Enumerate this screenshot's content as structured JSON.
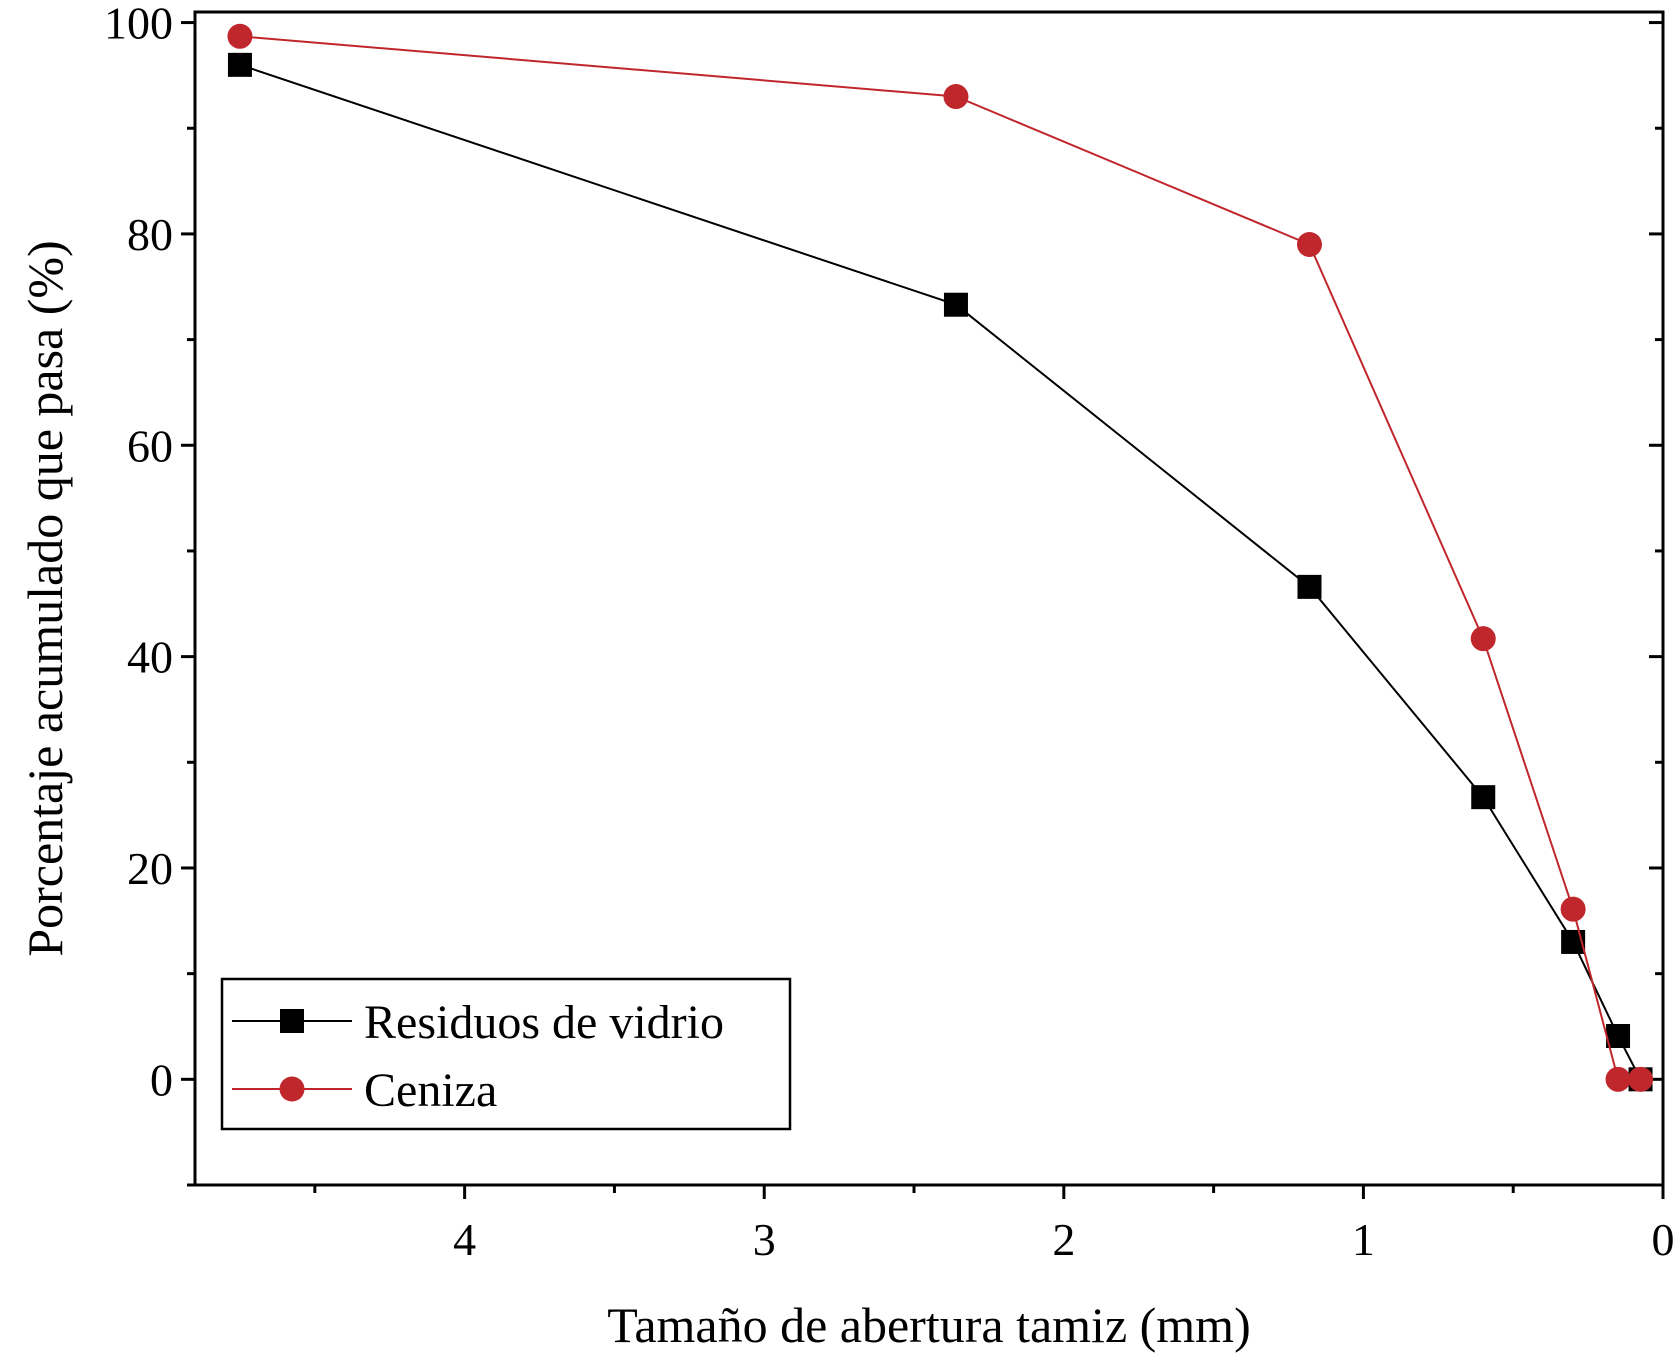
{
  "chart_data": {
    "type": "line",
    "xlabel": "Tamaño de abertura tamiz (mm)",
    "ylabel": "Porcentaje acumulado que pasa (%)",
    "xlim": [
      4.9,
      0
    ],
    "ylim": [
      -10,
      101
    ],
    "x_reversed": true,
    "x_ticks": [
      4,
      3,
      2,
      1,
      0
    ],
    "x_tick_labels": [
      "4",
      "3",
      "2",
      "1",
      "0"
    ],
    "x_minor_ticks": [
      4.5,
      3.5,
      2.5,
      1.5,
      0.5
    ],
    "y_ticks": [
      0,
      20,
      40,
      60,
      80,
      100
    ],
    "y_tick_labels": [
      "0",
      "20",
      "40",
      "60",
      "80",
      "100"
    ],
    "y_minor_ticks": [
      -10,
      10,
      30,
      50,
      70,
      90
    ],
    "grid": false,
    "legend_position": "bottom-left",
    "series": [
      {
        "name": "Residuos de vidrio",
        "color": "#000000",
        "marker": "square",
        "x": [
          4.75,
          2.36,
          1.18,
          0.6,
          0.3,
          0.15,
          0.075
        ],
        "y": [
          96,
          73.3,
          46.6,
          26.7,
          13,
          4.1,
          0
        ]
      },
      {
        "name": "Ceniza",
        "color": "#c0272d",
        "marker": "circle",
        "x": [
          4.75,
          2.36,
          1.18,
          0.6,
          0.3,
          0.15,
          0.075
        ],
        "y": [
          98.7,
          93,
          79,
          41.7,
          16.1,
          0,
          0
        ]
      }
    ]
  }
}
